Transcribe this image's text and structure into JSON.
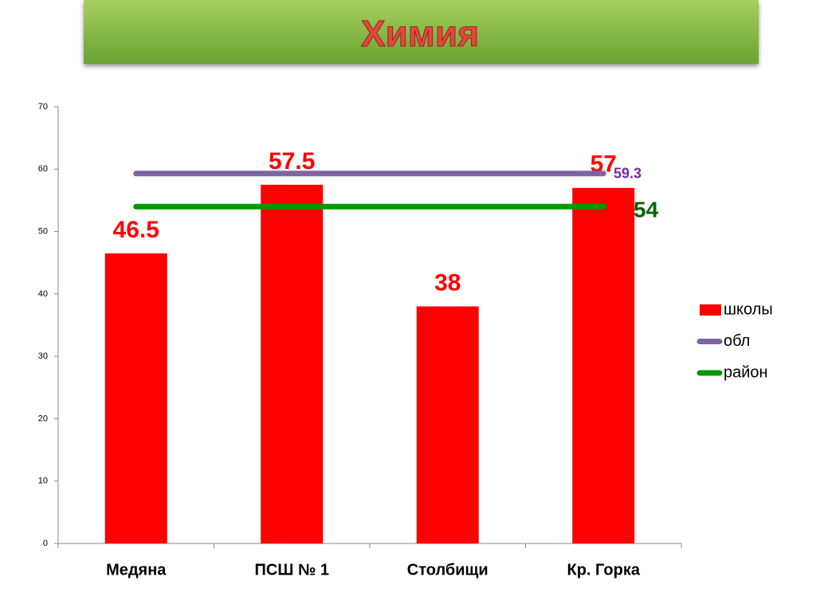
{
  "chart_data": {
    "type": "bar",
    "title": "Химия",
    "categories": [
      "Медяна",
      "ПСШ № 1",
      "Столбищи",
      "Кр. Горка"
    ],
    "series": [
      {
        "name": "школы",
        "type": "bar",
        "color": "#ff0000",
        "values": [
          46.5,
          57.5,
          38,
          57
        ],
        "data_labels": "all"
      },
      {
        "name": "обл",
        "type": "line",
        "color": "#8064a2",
        "values": [
          59.3,
          59.3,
          59.3,
          59.3
        ],
        "data_labels": "last"
      },
      {
        "name": "район",
        "type": "line",
        "color": "#009900",
        "values": [
          54,
          54,
          54,
          54
        ],
        "data_labels": "last"
      }
    ],
    "ylim": [
      0,
      70
    ],
    "yticks": [
      0,
      10,
      20,
      30,
      40,
      50,
      60,
      70
    ],
    "grid": false,
    "legend": "right"
  }
}
